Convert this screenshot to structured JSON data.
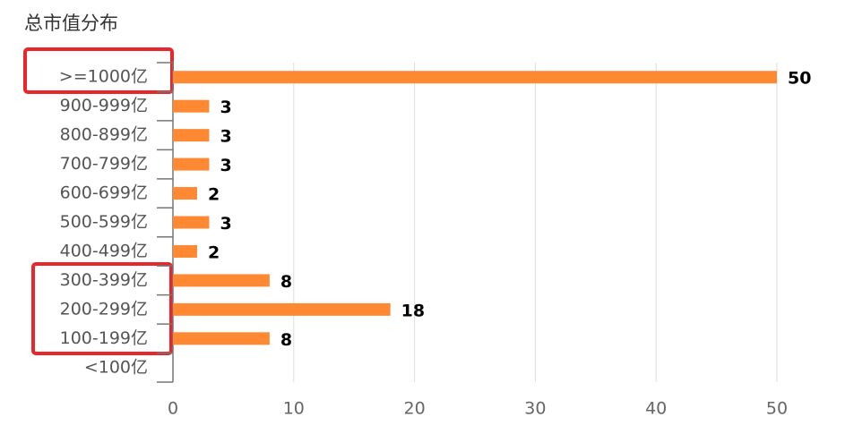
{
  "chart_data": {
    "type": "barh",
    "title": "总市值分布",
    "categories": [
      ">=1000亿",
      "900-999亿",
      "800-899亿",
      "700-799亿",
      "600-699亿",
      "500-599亿",
      "400-499亿",
      "300-399亿",
      "200-299亿",
      "100-199亿",
      "<100亿"
    ],
    "values": [
      50,
      3,
      3,
      3,
      2,
      3,
      2,
      8,
      18,
      8,
      null
    ],
    "color": "#ff8833",
    "xlim": [
      0,
      50
    ],
    "xticks": [
      0,
      10,
      20,
      30,
      40,
      50
    ],
    "grid": true
  }
}
